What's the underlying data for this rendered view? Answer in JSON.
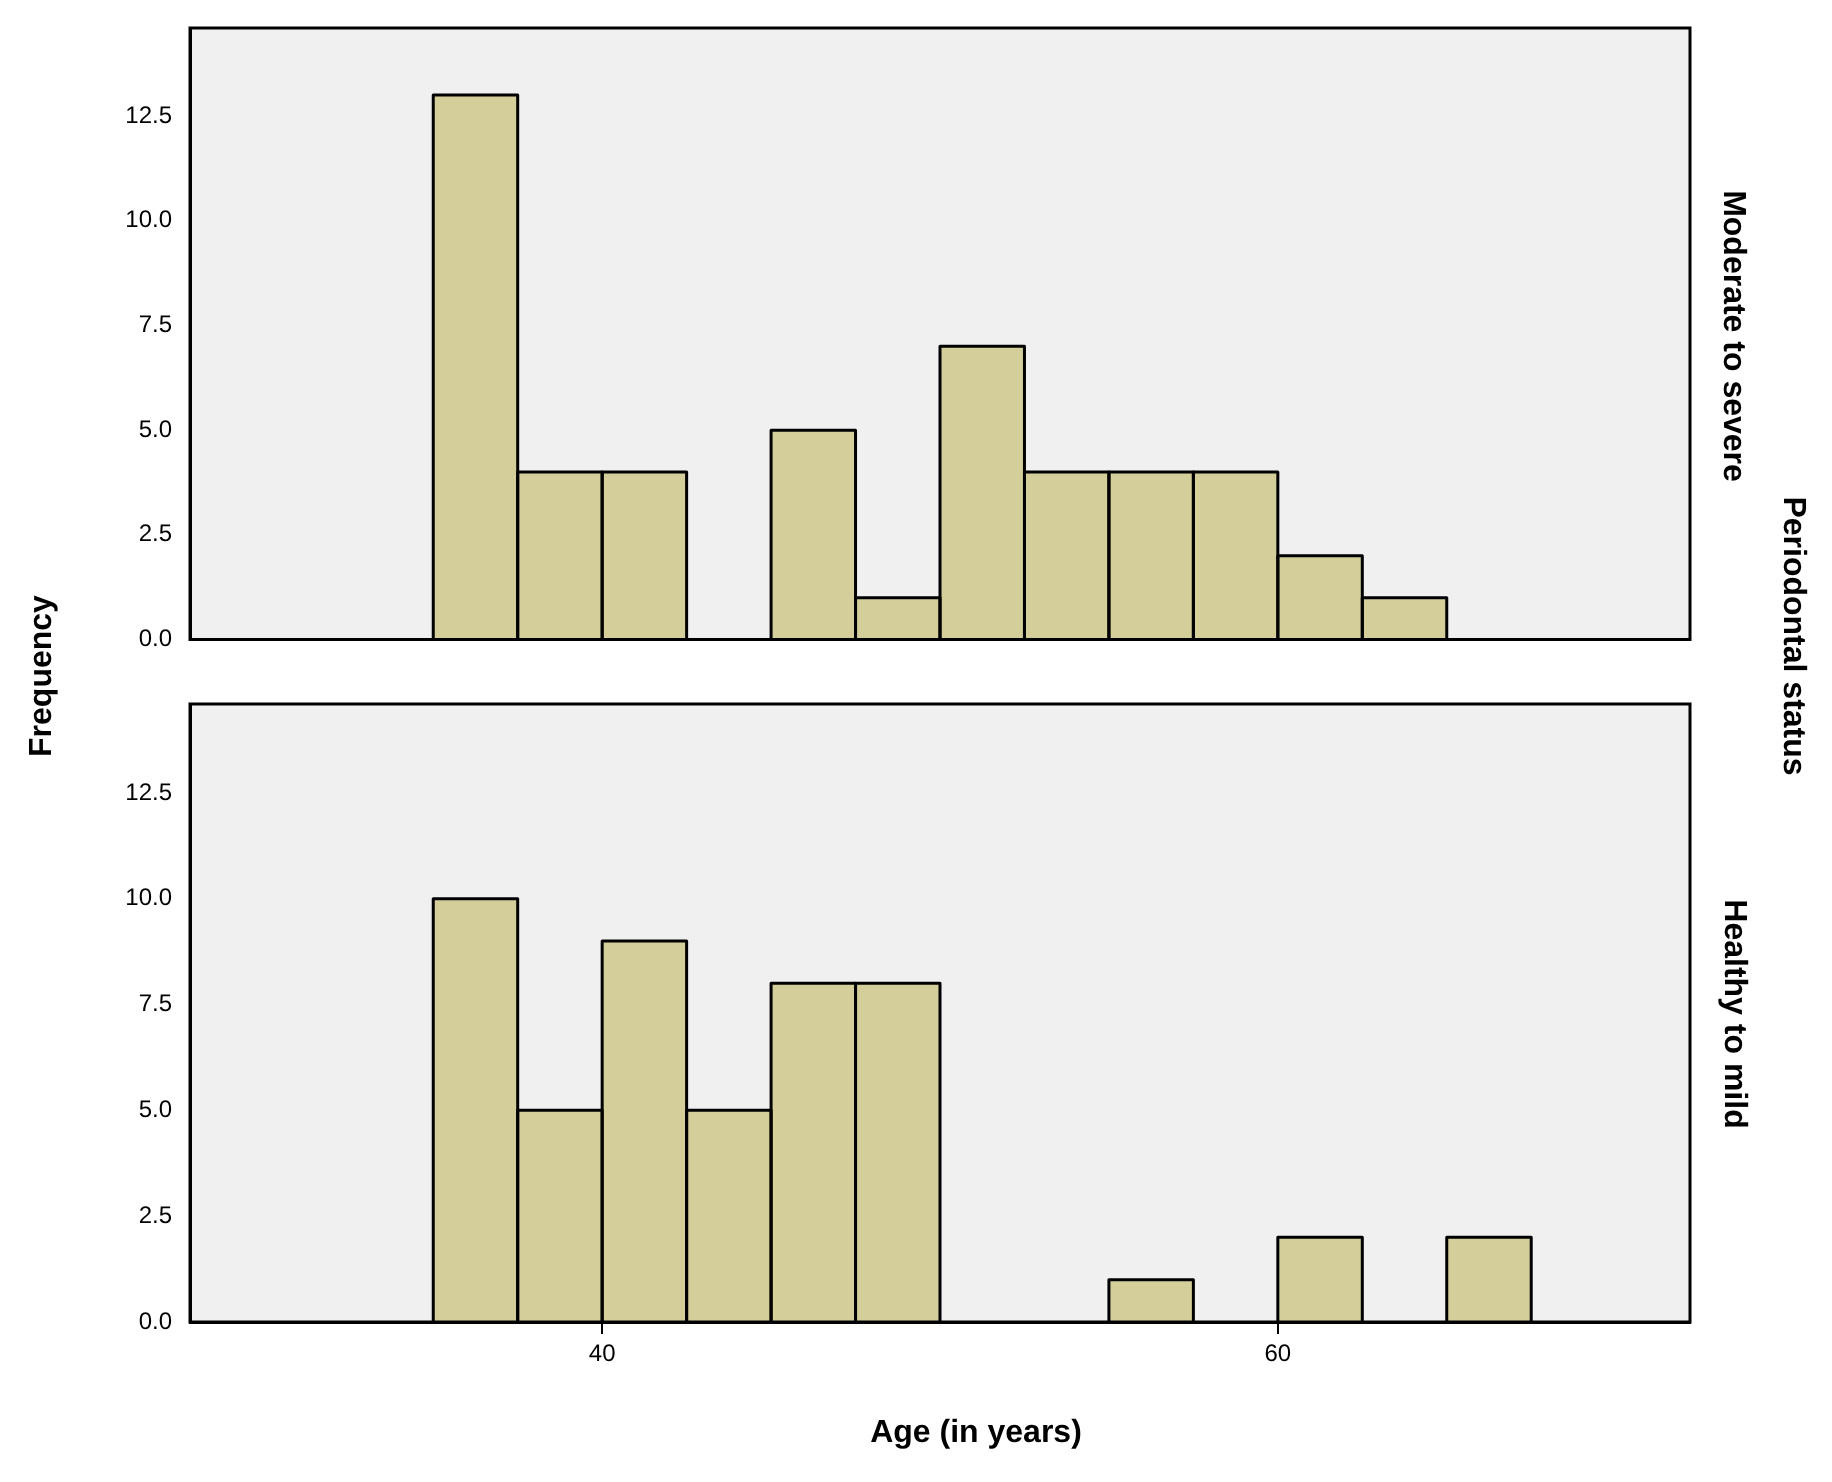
{
  "chart_data": [
    {
      "type": "histogram",
      "ylabel": "Frequency",
      "annotations": [
        "Periodontal status"
      ],
      "y2label": "Moderate to severe",
      "bins": [
        35,
        37.5,
        40,
        42.5,
        45,
        47.5,
        50,
        52.5,
        55,
        57.5,
        60,
        62.5,
        65,
        67.5
      ],
      "values": [
        13,
        4,
        4,
        0,
        5,
        1,
        7,
        4,
        4,
        4,
        2,
        1,
        0
      ],
      "color": "#d4cf9a",
      "xlim": [
        27.8,
        72.2
      ],
      "ylim": [
        0,
        14.6
      ],
      "yticks": [
        {
          "value": 0,
          "label": "0.0"
        },
        {
          "value": 2.5,
          "label": "2.5"
        },
        {
          "value": 5,
          "label": "5.0"
        },
        {
          "value": 7.5,
          "label": "7.5"
        },
        {
          "value": 10,
          "label": "10.0"
        },
        {
          "value": 12.5,
          "label": "12.5"
        }
      ],
      "grid": false,
      "legend": false,
      "tick_labels": "y"
    },
    {
      "type": "histogram",
      "xlabel": "Age (in years)",
      "y2label": "Healthy to mild",
      "bins": [
        35,
        37.5,
        40,
        42.5,
        45,
        47.5,
        50,
        52.5,
        55,
        57.5,
        60,
        62.5,
        65,
        67.5
      ],
      "values": [
        10,
        5,
        9,
        5,
        8,
        8,
        0,
        0,
        1,
        0,
        2,
        0,
        2
      ],
      "color": "#d4cf9a",
      "xlim": [
        27.8,
        72.2
      ],
      "ylim": [
        0,
        14.6
      ],
      "xticks": [
        40,
        60
      ],
      "yticks": [
        {
          "value": 0,
          "label": "0.0"
        },
        {
          "value": 2.5,
          "label": "2.5"
        },
        {
          "value": 5,
          "label": "5.0"
        },
        {
          "value": 7.5,
          "label": "7.5"
        },
        {
          "value": 10,
          "label": "10.0"
        },
        {
          "value": 12.5,
          "label": "12.5"
        }
      ],
      "grid": false,
      "legend": false
    }
  ]
}
